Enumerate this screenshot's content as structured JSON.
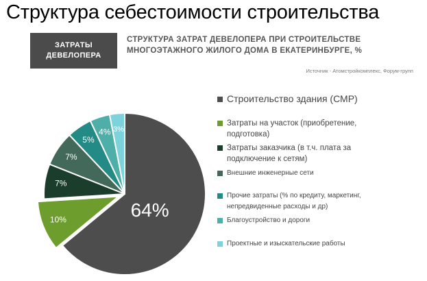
{
  "slide_title": "Структура себестоимости строительства",
  "badge": {
    "line1": "ЗАТРАТЫ",
    "line2": "ДЕВЕЛОПЕРА"
  },
  "subtitle": {
    "line1": "СТРУКТУРА ЗАТРАТ ДЕВЕЛОПЕРА ПРИ СТРОИТЕЛЬСТВЕ",
    "line2": "МНОГОЭТАЖНОГО ЖИЛОГО ДОМА В ЕКАТЕРИНБУРГЕ, %"
  },
  "source": "Источник - Атомстройкомплекс, Форум-групп",
  "chart_data": {
    "type": "pie",
    "title": "СТРУКТУРА ЗАТРАТ ДЕВЕЛОПЕРА ПРИ СТРОИТЕЛЬСТВЕ МНОГОЭТАЖНОГО ЖИЛОГО ДОМА В ЕКАТЕРИНБУРГЕ, %",
    "unit": "%",
    "legend_position": "right",
    "exploded_slice": "Затраты на участок (приобретение, подготовка)",
    "slices": [
      {
        "label": "Строительство здания (СМР)",
        "value": 64,
        "display": "64%",
        "color": "#4d4d4d"
      },
      {
        "label": "Затраты на участок (приобретение, подготовка)",
        "value": 10,
        "display": "10%",
        "color": "#6d9e2d"
      },
      {
        "label": "Затраты заказчика (в т.ч. плата за подключение к сетям)",
        "value": 7,
        "display": "7%",
        "color": "#1b3d2b"
      },
      {
        "label": "Внешние инженерные сети",
        "value": 7,
        "display": "7%",
        "color": "#42695a"
      },
      {
        "label": "Прочие затраты (% по кредиту, маркетинг, непредвиденные расходы и др)",
        "value": 5,
        "display": "5%",
        "color": "#248a86"
      },
      {
        "label": "Благоустройство и дороги",
        "value": 4,
        "display": "4%",
        "color": "#4eaea8"
      },
      {
        "label": "Проектные и изыскательские работы",
        "value": 3,
        "display": "3%",
        "color": "#7dd3db"
      }
    ]
  },
  "legend": [
    "Строительство здания (СМР)",
    "Затраты на участок (приобретение,\nподготовка)",
    "Затраты заказчика (в т.ч. плата за\nподключение к сетям)",
    "Внешние инженерные сети",
    "Прочие затраты (% по кредиту, маркетинг,\nнепредвиденные расходы и др)",
    "Благоустройство и дороги",
    "Проектные и изыскательские работы"
  ]
}
